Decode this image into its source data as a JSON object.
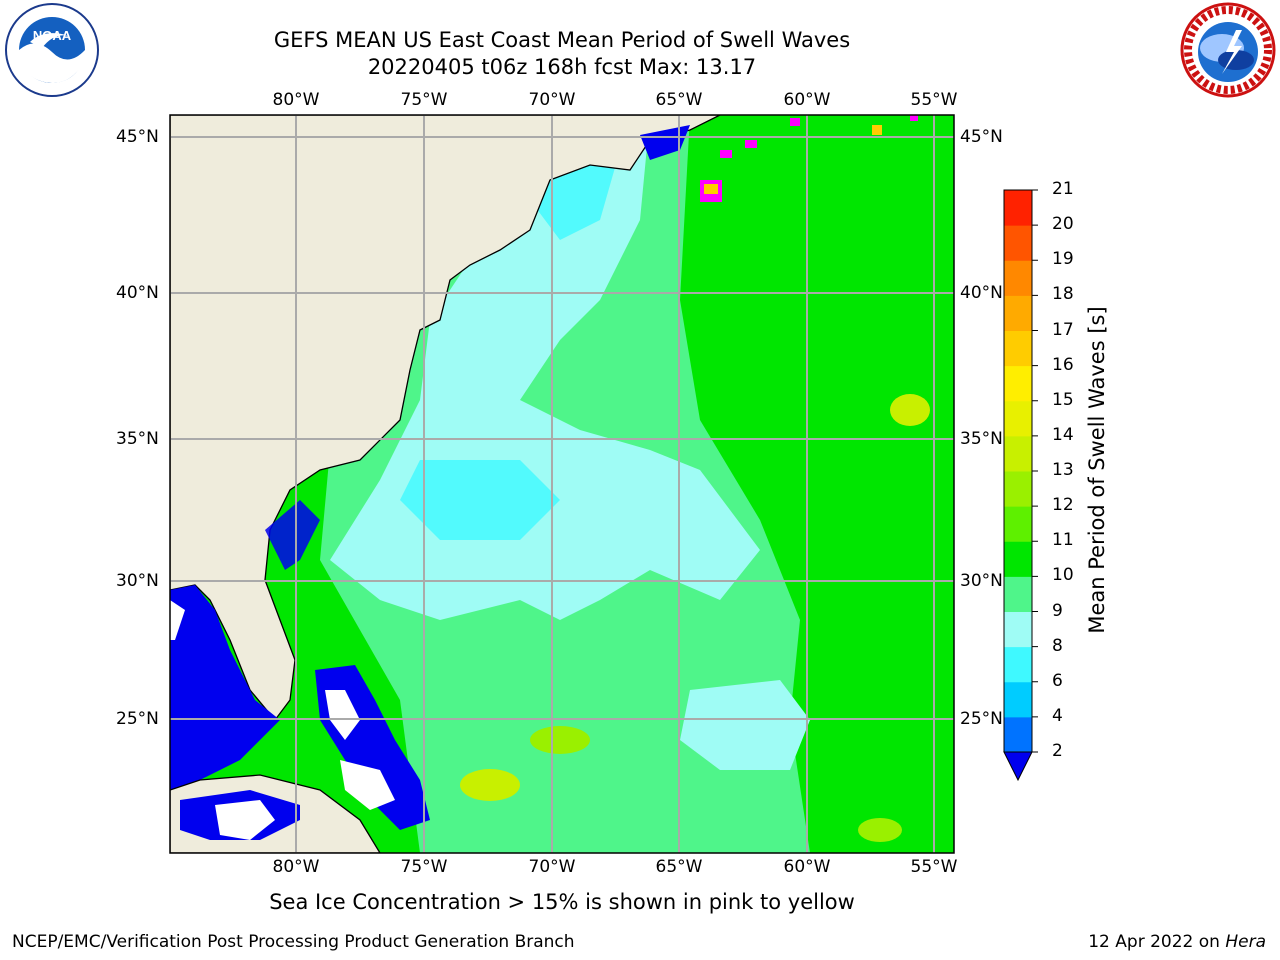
{
  "title": {
    "line1": "GEFS MEAN US East Coast Mean Period of Swell Waves",
    "line2": "20220405 t06z 168h fcst   Max: 13.17"
  },
  "logos": {
    "left": "noaa-logo",
    "left_text": "NOAA",
    "right": "nws-logo"
  },
  "map": {
    "lon_labels": [
      "80°W",
      "75°W",
      "70°W",
      "65°W",
      "60°W",
      "55°W"
    ],
    "lat_labels": [
      "45°N",
      "40°N",
      "35°N",
      "30°N",
      "25°N"
    ],
    "colors": {
      "land": "#efecdc",
      "ocean_main": "#9ffcf5",
      "ocean_mid": "#4ff58a",
      "ocean_far": "#00e600",
      "shelf_light": "#3ff9ff",
      "shelf_deep": "#0000ee",
      "yellow_spots": "#c8f000",
      "ice": "#ff00ff"
    }
  },
  "colorbar": {
    "title": "Mean Period of Swell Waves [s]",
    "ticks": [
      "2",
      "4",
      "6",
      "8",
      "9",
      "10",
      "11",
      "12",
      "13",
      "14",
      "15",
      "16",
      "17",
      "18",
      "19",
      "20",
      "21"
    ],
    "colors": [
      "#0073ff",
      "#00ccff",
      "#3ff9ff",
      "#9ffcf5",
      "#4ff58a",
      "#00e600",
      "#5ef000",
      "#9af000",
      "#c8f000",
      "#e8f000",
      "#ffee00",
      "#ffcc00",
      "#ffaa00",
      "#ff8800",
      "#ff5500",
      "#ff2200"
    ],
    "under_color": "#0000ee"
  },
  "note": "Sea Ice Concentration > 15% is shown in pink to yellow",
  "footer": {
    "left": "NCEP/EMC/Verification Post Processing Product Generation Branch",
    "date": "12 Apr 2022 on",
    "machine": "Hera"
  }
}
